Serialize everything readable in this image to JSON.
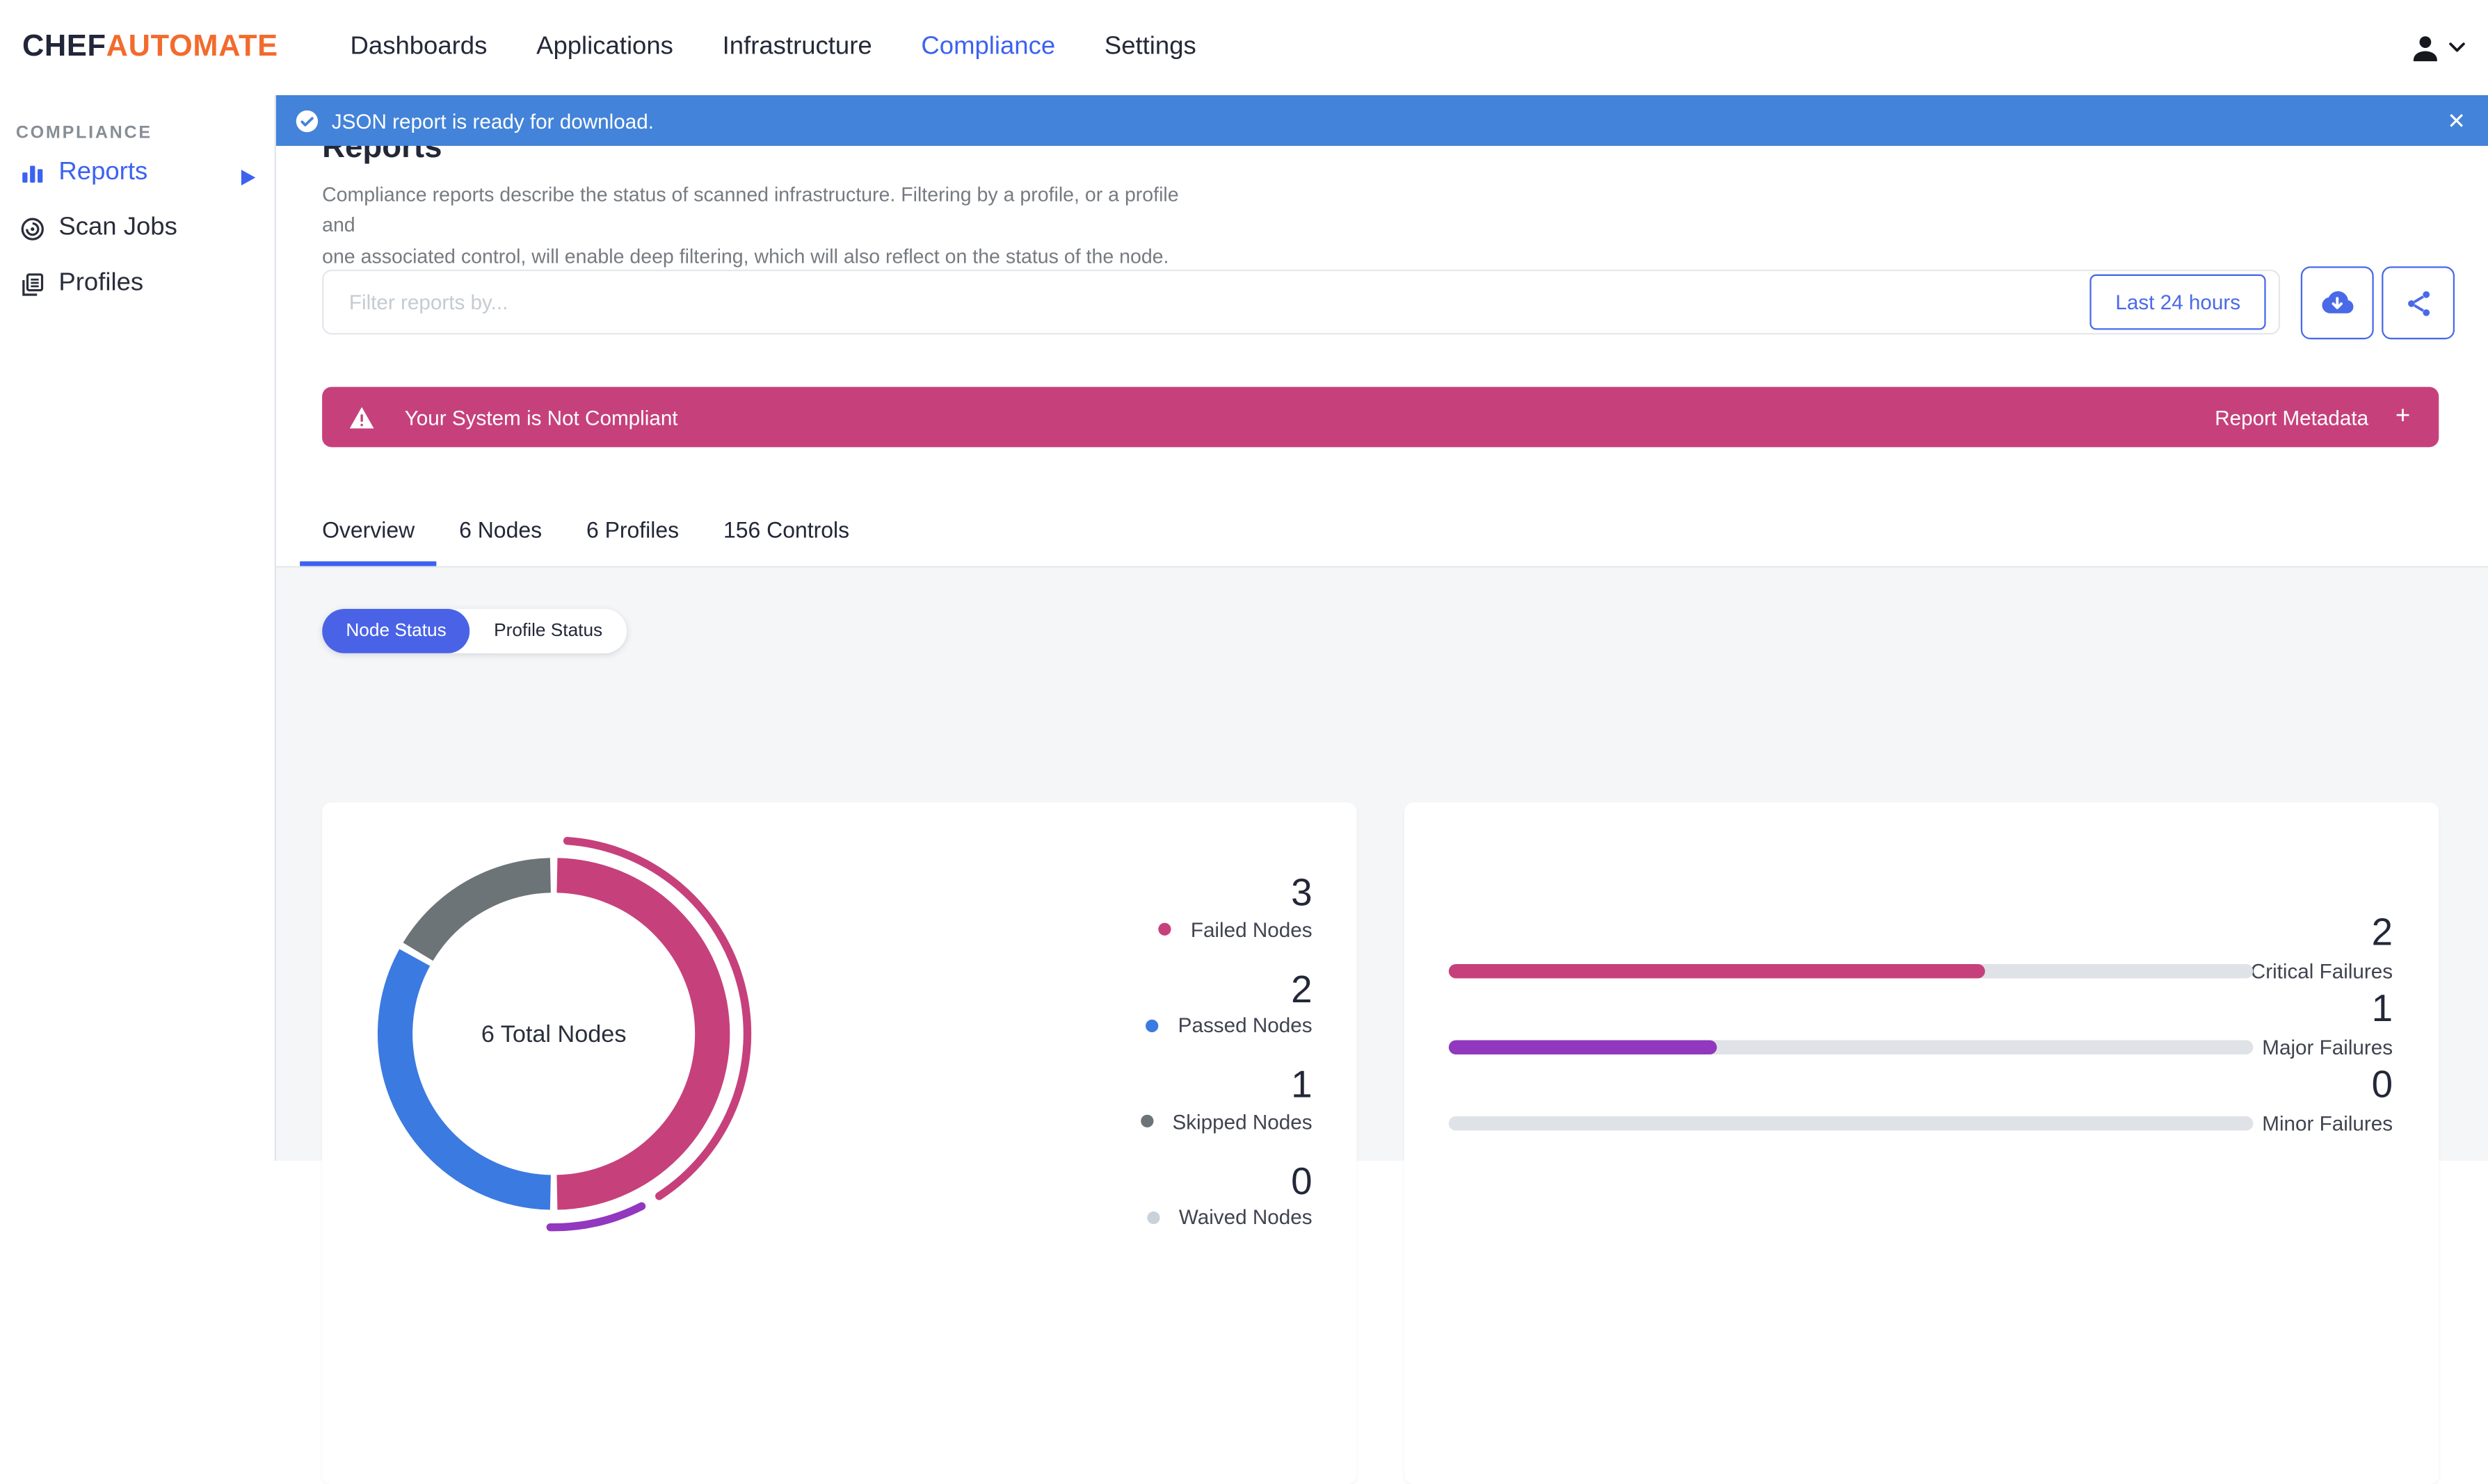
{
  "brand": {
    "chef": "CHEF",
    "automate": "AUTOMATE"
  },
  "nav": {
    "items": [
      {
        "label": "Dashboards"
      },
      {
        "label": "Applications"
      },
      {
        "label": "Infrastructure"
      },
      {
        "label": "Compliance"
      },
      {
        "label": "Settings"
      }
    ],
    "active": "Compliance"
  },
  "banner": {
    "text": "JSON report is ready for download.",
    "close_label": "✕"
  },
  "sidebar": {
    "section": "COMPLIANCE",
    "items": [
      {
        "label": "Reports"
      },
      {
        "label": "Scan Jobs"
      },
      {
        "label": "Profiles"
      }
    ],
    "active": "Reports"
  },
  "header": {
    "title": "Reports",
    "description_line1": "Compliance reports describe the status of scanned infrastructure. Filtering by a profile, or a profile and",
    "description_line2": "one associated control, will enable deep filtering, which will also reflect on the status of the node."
  },
  "filterbar": {
    "placeholder": "Filter reports by...",
    "time_button": "Last 24 hours"
  },
  "alert": {
    "message": "Your System is Not Compliant",
    "metadata_label": "Report Metadata",
    "plus": "+"
  },
  "tabs": [
    {
      "label": "Overview",
      "active": true
    },
    {
      "label": "6 Nodes",
      "active": false
    },
    {
      "label": "6 Profiles",
      "active": false
    },
    {
      "label": "156 Controls",
      "active": false
    }
  ],
  "toggle": {
    "options": [
      {
        "label": "Node Status"
      },
      {
        "label": "Profile Status"
      }
    ],
    "active": "Node Status"
  },
  "colors": {
    "accent_blue": "#3d62f0",
    "banner_blue": "#4383d9",
    "failed_pink": "#c6417b",
    "major_purple": "#9138bf",
    "passed_blue": "#3b7ae0",
    "skipped_gray": "#6c7478",
    "waived_gray": "#c9d2da",
    "track_gray": "#dfe2e6"
  },
  "chart_data": [
    {
      "type": "pie",
      "title": "6 Total Nodes",
      "center_label": "6 Total Nodes",
      "segments": [
        {
          "label": "Failed Nodes",
          "value": 3,
          "color": "#c6417b"
        },
        {
          "label": "Passed Nodes",
          "value": 2,
          "color": "#3b7ae0"
        },
        {
          "label": "Skipped Nodes",
          "value": 1,
          "color": "#6c7478"
        },
        {
          "label": "Waived Nodes",
          "value": 0,
          "color": "#c9d2da"
        }
      ],
      "total": 6,
      "legend_position": "right",
      "outer_arcs": [
        {
          "start_deg": 4,
          "end_deg": 147,
          "color": "#c6417b"
        },
        {
          "start_deg": 153,
          "end_deg": 181,
          "color": "#9138bf"
        }
      ]
    },
    {
      "type": "bar",
      "orientation": "horizontal",
      "bars": [
        {
          "label": "Critical Failures",
          "value": 2,
          "max": 3,
          "color": "#c6417b"
        },
        {
          "label": "Major Failures",
          "value": 1,
          "max": 3,
          "color": "#9138bf"
        },
        {
          "label": "Minor Failures",
          "value": 0,
          "max": 3,
          "color": "#dfe2e6"
        }
      ]
    }
  ]
}
